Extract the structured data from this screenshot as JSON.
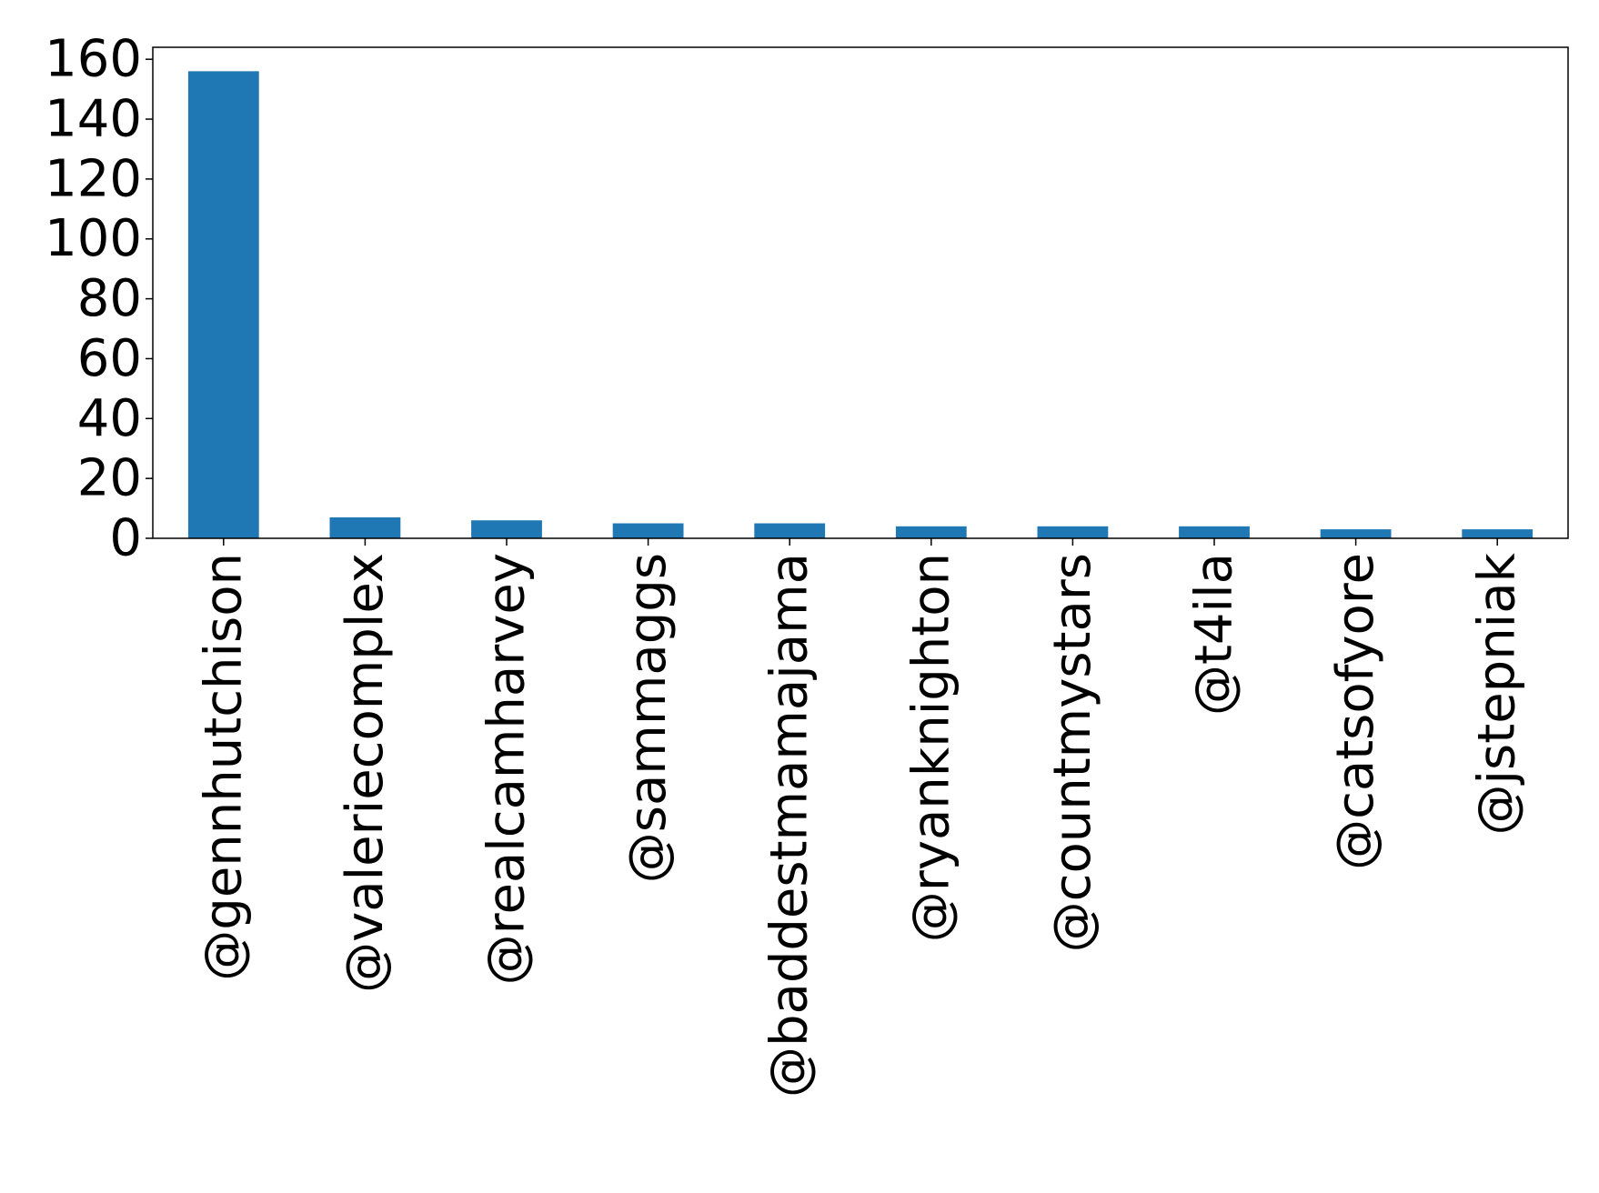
{
  "chart_data": {
    "type": "bar",
    "title": "",
    "xlabel": "",
    "ylabel": "",
    "categories": [
      "@gennhutchison",
      "@valeriecomplex",
      "@realcamharvey",
      "@sammaggs",
      "@baddestmamajama",
      "@ryanknighton",
      "@countmystars",
      "@t4ila",
      "@catsofyore",
      "@jstepniak"
    ],
    "values": [
      156,
      7,
      6,
      5,
      5,
      4,
      4,
      4,
      3,
      3
    ],
    "ylim": [
      0,
      164
    ],
    "yticks": [
      0,
      20,
      40,
      60,
      80,
      100,
      120,
      140,
      160
    ],
    "bar_color": "#1f77b4",
    "grid": false,
    "legend": "none"
  }
}
